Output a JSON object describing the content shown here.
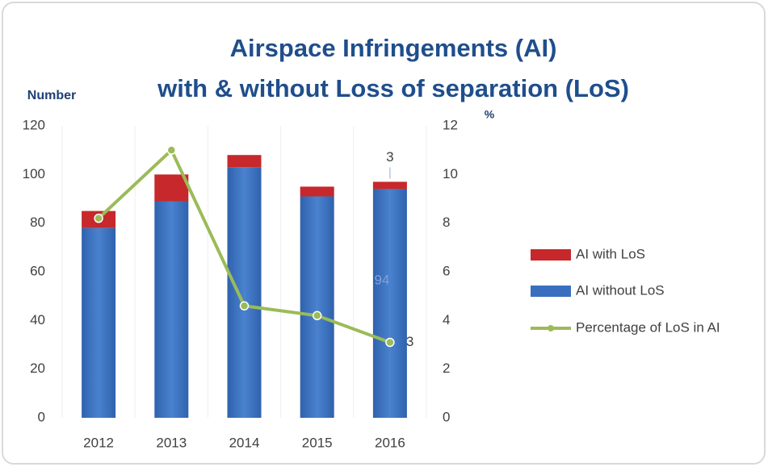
{
  "chart_data": {
    "type": "bar",
    "title": [
      "Airspace Infringements (AI)",
      "with & without Loss of separation (LoS)"
    ],
    "y_label": "Number",
    "y2_label": "%",
    "categories": [
      "2012",
      "2013",
      "2014",
      "2015",
      "2016"
    ],
    "series": [
      {
        "name": "AI with LoS",
        "color": "#c6282b",
        "values": [
          7,
          11,
          5,
          4,
          3
        ],
        "value_labels": [
          null,
          null,
          null,
          null,
          "3"
        ]
      },
      {
        "name": "AI without LoS",
        "color": "#3a6fbf",
        "values": [
          78,
          89,
          103,
          91,
          94
        ],
        "value_labels": [
          null,
          null,
          null,
          null,
          "94"
        ]
      },
      {
        "name": "Percentage of LoS in AI",
        "type": "line",
        "axis": "y2",
        "color": "#9bbb59",
        "values": [
          8.2,
          11,
          4.6,
          4.2,
          3.1
        ],
        "value_labels": [
          null,
          null,
          null,
          null,
          "3"
        ]
      }
    ],
    "ylim": [
      0,
      120
    ],
    "yticks": [
      0,
      20,
      40,
      60,
      80,
      100,
      120
    ],
    "y2lim": [
      0,
      12
    ],
    "y2ticks": [
      0,
      2,
      4,
      6,
      8,
      10,
      12
    ],
    "legend": "right"
  }
}
